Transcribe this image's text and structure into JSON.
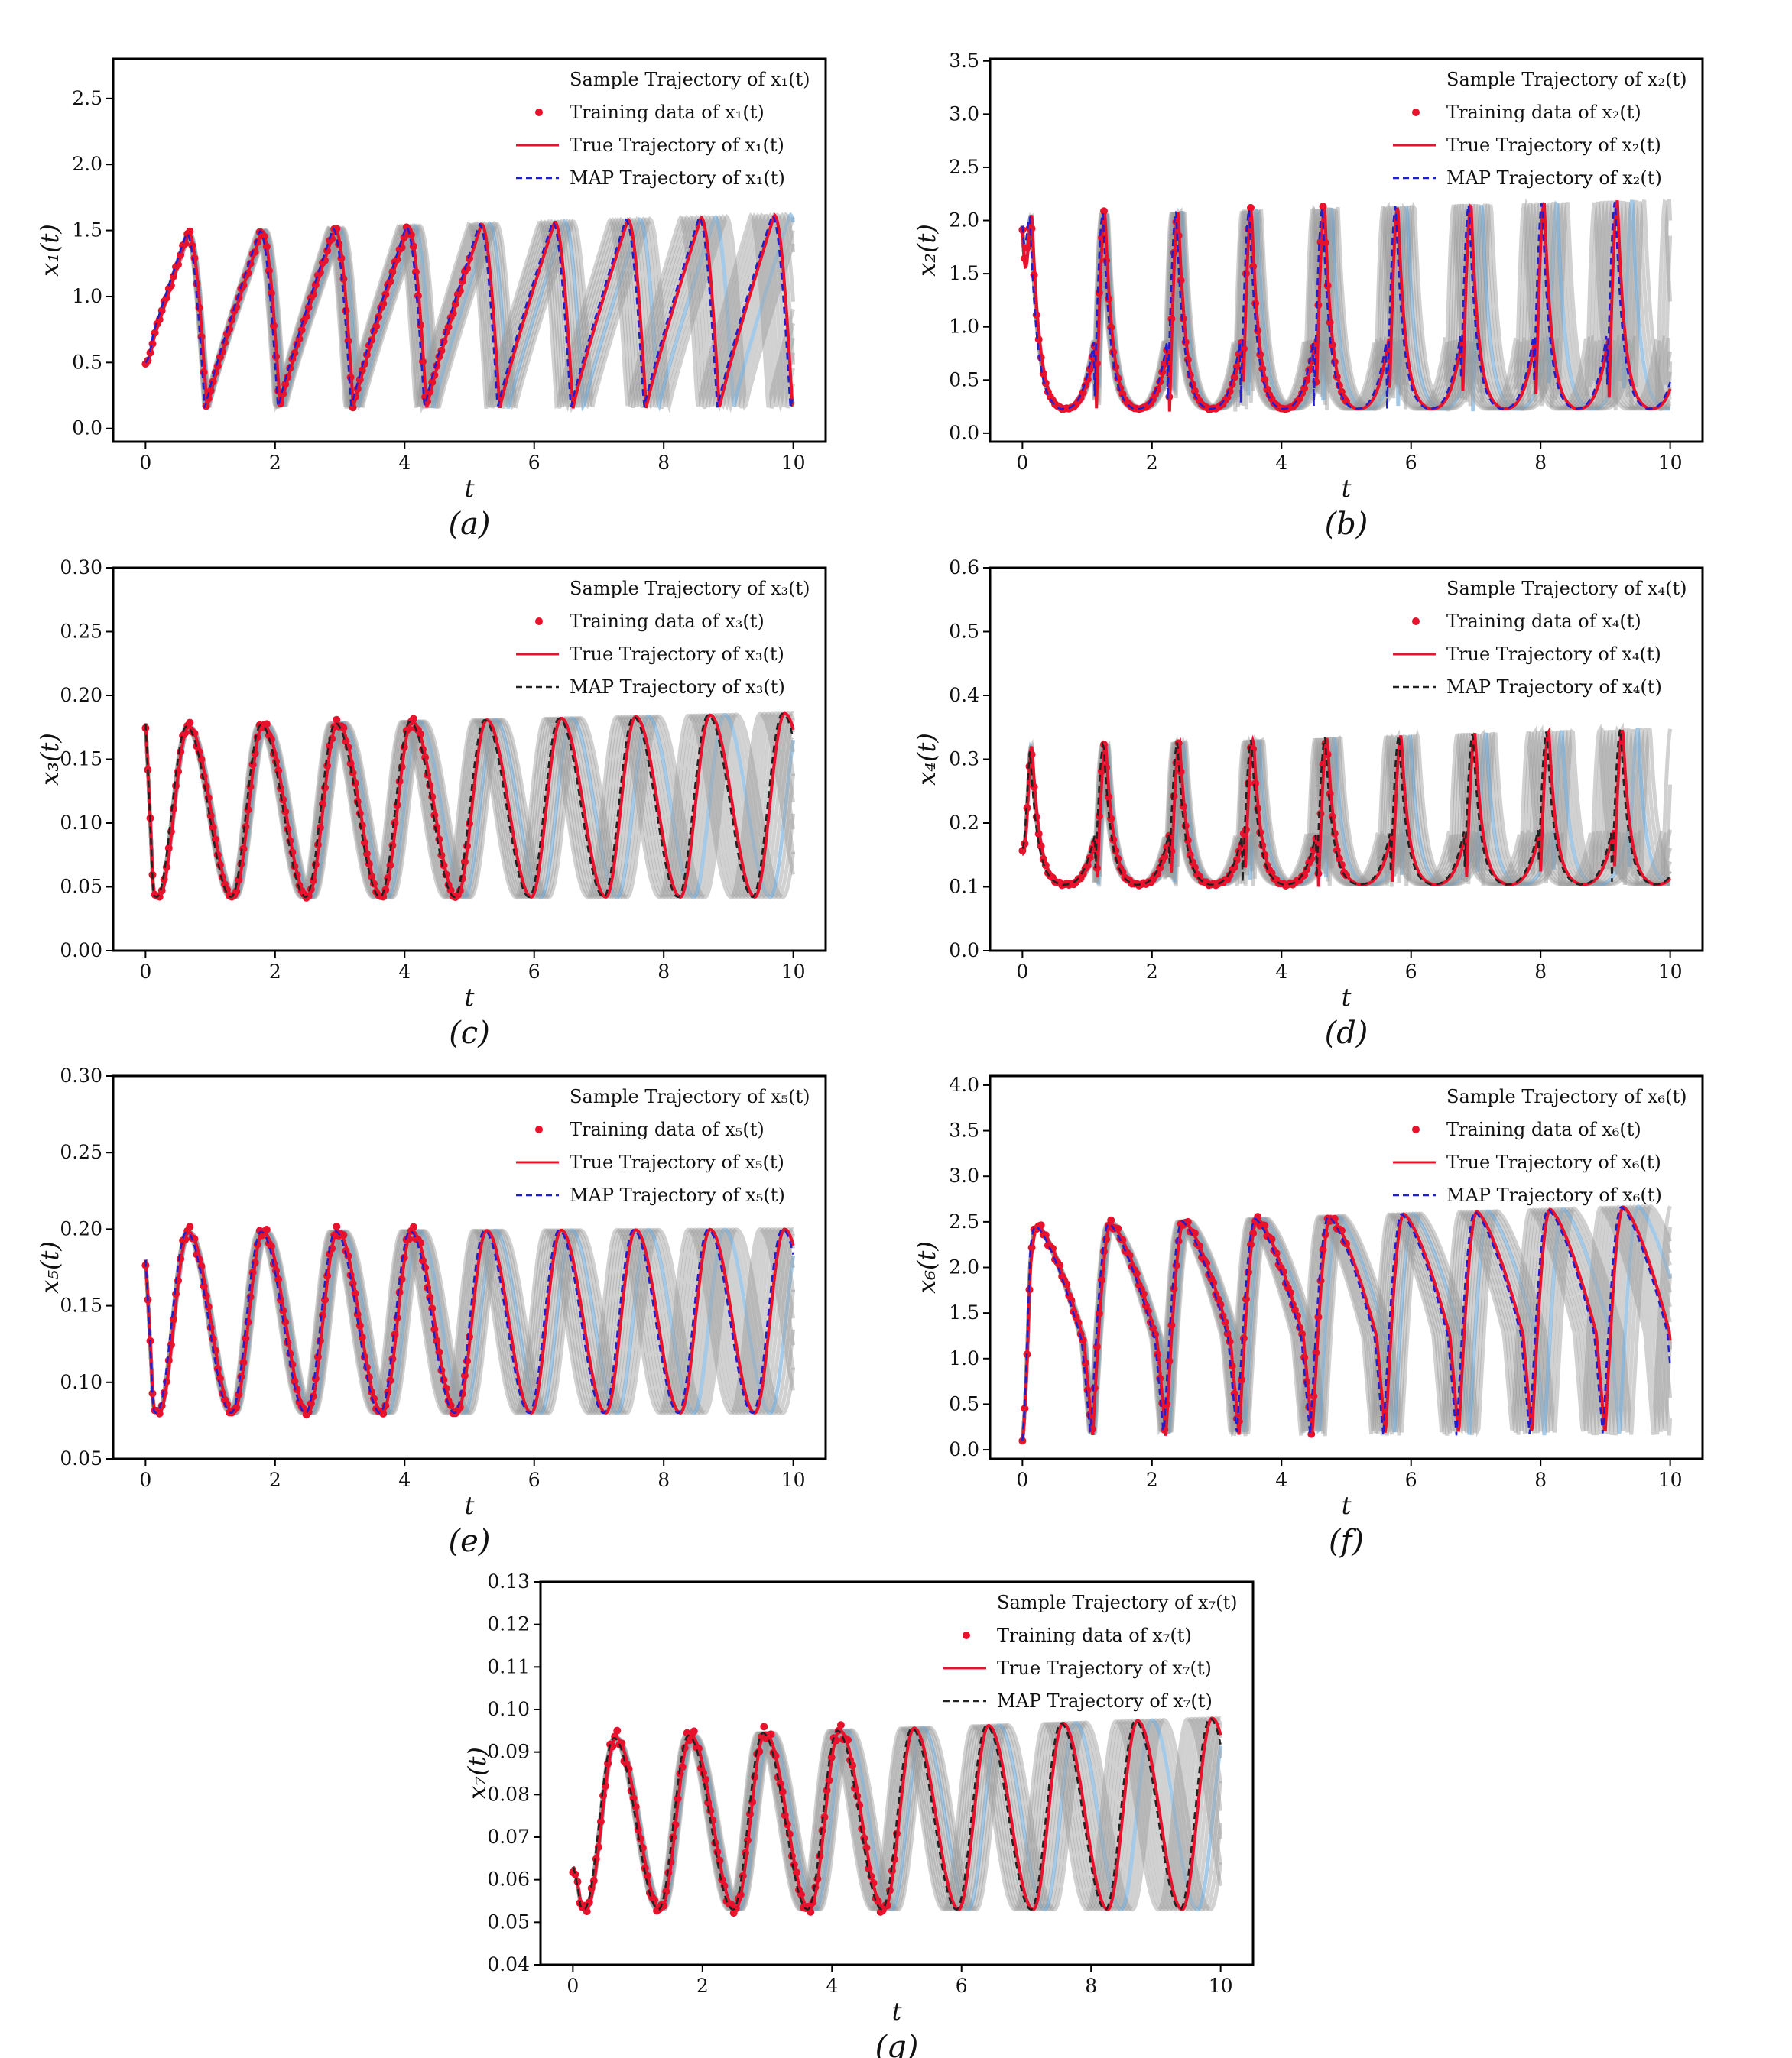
{
  "figure": {
    "panels": [
      "a",
      "b",
      "c",
      "d",
      "e",
      "f",
      "g"
    ]
  },
  "colors": {
    "true_line": "#e8122c",
    "map_line": "#1f1fd0",
    "map_line_alt": "#222222",
    "training_dots": "#e8122c",
    "samples": "#9a9a9a",
    "sample_accent": "#5a9fd6"
  },
  "chart_data": [
    {
      "id": "a",
      "type": "line",
      "caption": "(a)",
      "xlabel": "t",
      "ylabel": "x₁(t)",
      "xlim": [
        -0.5,
        10.5
      ],
      "ylim": [
        -0.1,
        2.8
      ],
      "xticks": [
        0,
        2,
        4,
        6,
        8,
        10
      ],
      "yticks": [
        0.0,
        0.5,
        1.0,
        1.5,
        2.0,
        2.5
      ],
      "ytick_labels": [
        "0.0",
        "0.5",
        "1.0",
        "1.5",
        "2.0",
        "2.5"
      ],
      "shape": "saw",
      "period": 1.13,
      "min": 0.15,
      "peak_start": 1.47,
      "peak_end": 1.62,
      "start": 0.5,
      "end_spread": 0.1,
      "legend": [
        {
          "kind": "sample",
          "label": "Sample Trajectory of x₁(t)"
        },
        {
          "kind": "train",
          "label": "Training data of x₁(t)"
        },
        {
          "kind": "true",
          "label": "True Trajectory of x₁(t)"
        },
        {
          "kind": "map",
          "label": "MAP Trajectory of x₁(t)"
        }
      ],
      "series": [
        {
          "name": "Sample Trajectory of x₁(t)",
          "note": "gray band of posterior samples"
        },
        {
          "name": "Training data of x₁(t)",
          "t_range": [
            0,
            5
          ]
        },
        {
          "name": "True Trajectory of x₁(t)"
        },
        {
          "name": "MAP Trajectory of x₁(t)"
        }
      ]
    },
    {
      "id": "b",
      "type": "line",
      "caption": "(b)",
      "xlabel": "t",
      "ylabel": "x₂(t)",
      "xlim": [
        -0.5,
        10.5
      ],
      "ylim": [
        -0.08,
        3.52
      ],
      "xticks": [
        0,
        2,
        4,
        6,
        8,
        10
      ],
      "yticks": [
        0.0,
        0.5,
        1.0,
        1.5,
        2.0,
        2.5,
        3.0,
        3.5
      ],
      "ytick_labels": [
        "0.0",
        "0.5",
        "1.0",
        "1.5",
        "2.0",
        "2.5",
        "3.0",
        "3.5"
      ],
      "shape": "spike",
      "period": 1.13,
      "min": 0.2,
      "peak_start": 2.05,
      "peak_end": 2.2,
      "start": 1.95,
      "end_spread": 0.6,
      "legend": [
        {
          "kind": "sample",
          "label": "Sample Trajectory of x₂(t)"
        },
        {
          "kind": "train",
          "label": "Training data of x₂(t)"
        },
        {
          "kind": "true",
          "label": "True Trajectory of x₂(t)"
        },
        {
          "kind": "map",
          "label": "MAP Trajectory of x₂(t)"
        }
      ],
      "series": [
        {
          "name": "Sample Trajectory of x₂(t)",
          "note": "gray band of posterior samples"
        },
        {
          "name": "Training data of x₂(t)",
          "t_range": [
            0,
            5
          ]
        },
        {
          "name": "True Trajectory of x₂(t)"
        },
        {
          "name": "MAP Trajectory of x₂(t)"
        }
      ]
    },
    {
      "id": "c",
      "type": "line",
      "caption": "(c)",
      "xlabel": "t",
      "ylabel": "x₃(t)",
      "xlim": [
        -0.5,
        10.5
      ],
      "ylim": [
        0.0,
        0.3
      ],
      "xticks": [
        0,
        2,
        4,
        6,
        8,
        10
      ],
      "yticks": [
        0.0,
        0.05,
        0.1,
        0.15,
        0.2,
        0.25,
        0.3
      ],
      "ytick_labels": [
        "0.00",
        "0.05",
        "0.10",
        "0.15",
        "0.20",
        "0.25",
        "0.30"
      ],
      "shape": "wave",
      "period": 1.15,
      "min": 0.042,
      "peak_start": 0.175,
      "peak_end": 0.186,
      "start": 0.178,
      "end_spread": 0.05,
      "legend": [
        {
          "kind": "sample",
          "label": "Sample Trajectory of x₃(t)"
        },
        {
          "kind": "train",
          "label": "Training data of x₃(t)"
        },
        {
          "kind": "true",
          "label": "True Trajectory of x₃(t)"
        },
        {
          "kind": "map",
          "label": "MAP Trajectory of x₃(t)"
        }
      ],
      "series": [
        {
          "name": "Sample Trajectory of x₃(t)",
          "note": "gray band of posterior samples"
        },
        {
          "name": "Training data of x₃(t)",
          "t_range": [
            0,
            5
          ]
        },
        {
          "name": "True Trajectory of x₃(t)"
        },
        {
          "name": "MAP Trajectory of x₃(t)"
        }
      ]
    },
    {
      "id": "d",
      "type": "line",
      "caption": "(d)",
      "xlabel": "t",
      "ylabel": "x₄(t)",
      "xlim": [
        -0.5,
        10.5
      ],
      "ylim": [
        0.0,
        0.6
      ],
      "xticks": [
        0,
        2,
        4,
        6,
        8,
        10
      ],
      "yticks": [
        0.0,
        0.1,
        0.2,
        0.3,
        0.4,
        0.5,
        0.6
      ],
      "ytick_labels": [
        "0.0",
        "0.1",
        "0.2",
        "0.3",
        "0.4",
        "0.5",
        "0.6"
      ],
      "shape": "spike",
      "period": 1.14,
      "min": 0.1,
      "peak_start": 0.32,
      "peak_end": 0.35,
      "start": 0.16,
      "end_spread": 0.05,
      "legend": [
        {
          "kind": "sample",
          "label": "Sample Trajectory of x₄(t)"
        },
        {
          "kind": "train",
          "label": "Training data of x₄(t)"
        },
        {
          "kind": "true",
          "label": "True Trajectory of x₄(t)"
        },
        {
          "kind": "map",
          "label": "MAP Trajectory of x₄(t)"
        }
      ],
      "series": [
        {
          "name": "Sample Trajectory of x₄(t)",
          "note": "gray band of posterior samples"
        },
        {
          "name": "Training data of x₄(t)",
          "t_range": [
            0,
            5
          ]
        },
        {
          "name": "True Trajectory of x₄(t)"
        },
        {
          "name": "MAP Trajectory of x₄(t)"
        }
      ]
    },
    {
      "id": "e",
      "type": "line",
      "caption": "(e)",
      "xlabel": "t",
      "ylabel": "x₅(t)",
      "xlim": [
        -0.5,
        10.5
      ],
      "ylim": [
        0.05,
        0.3
      ],
      "xticks": [
        0,
        2,
        4,
        6,
        8,
        10
      ],
      "yticks": [
        0.05,
        0.1,
        0.15,
        0.2,
        0.25,
        0.3
      ],
      "ytick_labels": [
        "0.05",
        "0.10",
        "0.15",
        "0.20",
        "0.25",
        "0.30"
      ],
      "shape": "wave",
      "period": 1.15,
      "min": 0.08,
      "peak_start": 0.198,
      "peak_end": 0.2,
      "start": 0.18,
      "end_spread": 0.04,
      "legend": [
        {
          "kind": "sample",
          "label": "Sample Trajectory of x₅(t)"
        },
        {
          "kind": "train",
          "label": "Training data of x₅(t)"
        },
        {
          "kind": "true",
          "label": "True Trajectory of x₅(t)"
        },
        {
          "kind": "map",
          "label": "MAP Trajectory of x₅(t)"
        }
      ],
      "series": [
        {
          "name": "Sample Trajectory of x₅(t)",
          "note": "gray band of posterior samples"
        },
        {
          "name": "Training data of x₅(t)",
          "t_range": [
            0,
            5
          ]
        },
        {
          "name": "True Trajectory of x₅(t)"
        },
        {
          "name": "MAP Trajectory of x₅(t)"
        }
      ]
    },
    {
      "id": "f",
      "type": "line",
      "caption": "(f)",
      "xlabel": "t",
      "ylabel": "x₆(t)",
      "xlim": [
        -0.5,
        10.5
      ],
      "ylim": [
        -0.1,
        4.1
      ],
      "xticks": [
        0,
        2,
        4,
        6,
        8,
        10
      ],
      "yticks": [
        0.0,
        0.5,
        1.0,
        1.5,
        2.0,
        2.5,
        3.0,
        3.5,
        4.0
      ],
      "ytick_labels": [
        "0.0",
        "0.5",
        "1.0",
        "1.5",
        "2.0",
        "2.5",
        "3.0",
        "3.5",
        "4.0"
      ],
      "shape": "rise",
      "period": 1.13,
      "min": 0.15,
      "peak_start": 2.45,
      "peak_end": 2.68,
      "start": 0.1,
      "end_spread": 0.45,
      "legend": [
        {
          "kind": "sample",
          "label": "Sample Trajectory of x₆(t)"
        },
        {
          "kind": "train",
          "label": "Training data of x₆(t)"
        },
        {
          "kind": "true",
          "label": "True Trajectory of x₆(t)"
        },
        {
          "kind": "map",
          "label": "MAP Trajectory of x₆(t)"
        }
      ],
      "series": [
        {
          "name": "Sample Trajectory of x₆(t)",
          "note": "gray band of posterior samples"
        },
        {
          "name": "Training data of x₆(t)",
          "t_range": [
            0,
            5
          ]
        },
        {
          "name": "True Trajectory of x₆(t)"
        },
        {
          "name": "MAP Trajectory of x₆(t)"
        }
      ]
    },
    {
      "id": "g",
      "type": "line",
      "caption": "(g)",
      "xlabel": "t",
      "ylabel": "x₇(t)",
      "xlim": [
        -0.5,
        10.5
      ],
      "ylim": [
        0.04,
        0.13
      ],
      "xticks": [
        0,
        2,
        4,
        6,
        8,
        10
      ],
      "yticks": [
        0.04,
        0.05,
        0.06,
        0.07,
        0.08,
        0.09,
        0.1,
        0.11,
        0.12,
        0.13
      ],
      "ytick_labels": [
        "0.04",
        "0.05",
        "0.06",
        "0.07",
        "0.08",
        "0.09",
        "0.10",
        "0.11",
        "0.12",
        "0.13"
      ],
      "shape": "wave",
      "period": 1.15,
      "min": 0.053,
      "peak_start": 0.093,
      "peak_end": 0.098,
      "start": 0.063,
      "end_spread": 0.008,
      "legend": [
        {
          "kind": "sample",
          "label": "Sample Trajectory of x₇(t)"
        },
        {
          "kind": "train",
          "label": "Training data of x₇(t)"
        },
        {
          "kind": "true",
          "label": "True Trajectory of x₇(t)"
        },
        {
          "kind": "map",
          "label": "MAP Trajectory of x₇(t)"
        }
      ],
      "series": [
        {
          "name": "Sample Trajectory of x₇(t)",
          "note": "gray band of posterior samples"
        },
        {
          "name": "Training data of x₇(t)",
          "t_range": [
            0,
            5
          ]
        },
        {
          "name": "True Trajectory of x₇(t)"
        },
        {
          "name": "MAP Trajectory of x₇(t)"
        }
      ]
    }
  ]
}
